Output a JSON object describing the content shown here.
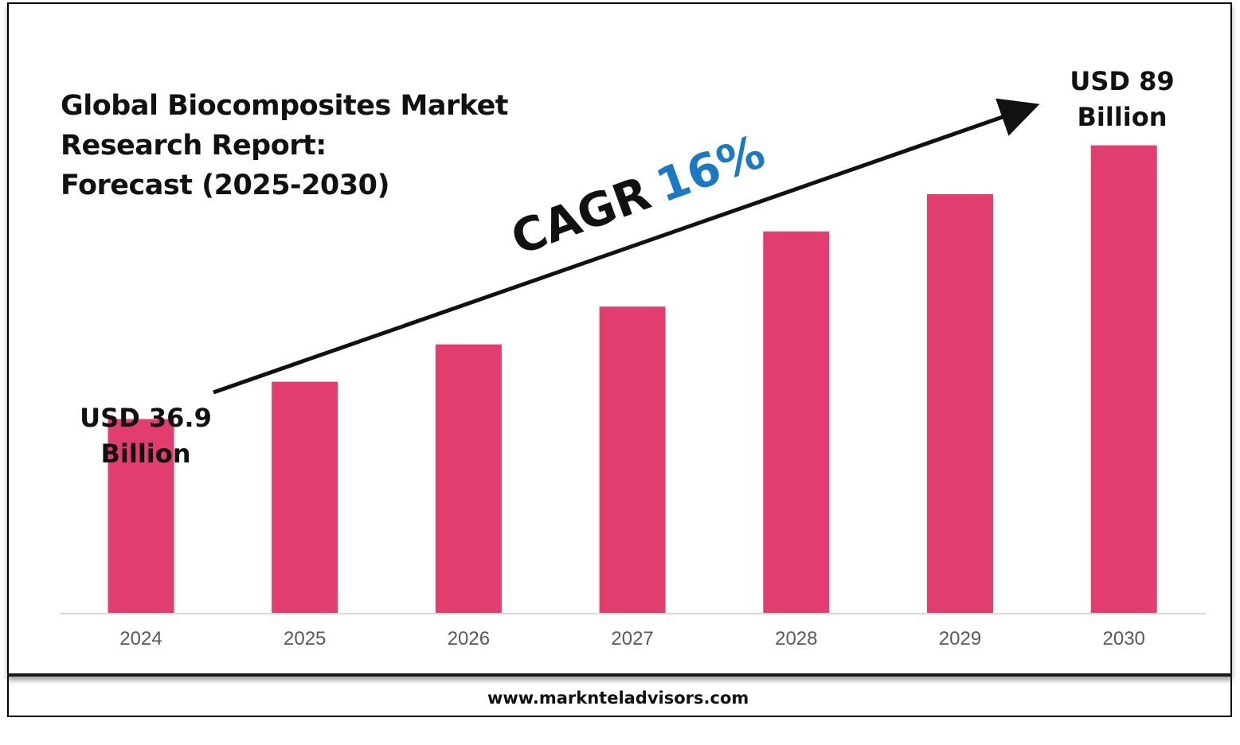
{
  "title_lines": [
    "Global Biocomposites Market",
    "Research Report:",
    "Forecast (2025-2030)"
  ],
  "start_label": {
    "line1": "USD 36.9",
    "line2": "Billion"
  },
  "end_label": {
    "line1": "USD 89",
    "line2": "Billion"
  },
  "cagr": {
    "word": "CAGR",
    "value": "16%"
  },
  "footer_url": "www.marknteladvisors.com",
  "colors": {
    "bar": "#e13e6f",
    "cagr_value": "#1b79c4",
    "text": "#111111",
    "tick_label": "#595959",
    "baseline": "#d9d9d9"
  },
  "chart_data": {
    "type": "bar",
    "title": "Global Biocomposites Market Research Report: Forecast (2025-2030)",
    "categories": [
      "2024",
      "2025",
      "2026",
      "2027",
      "2028",
      "2029",
      "2030"
    ],
    "series": [
      {
        "values": [
          36.9,
          44.0,
          51.1,
          58.3,
          72.6,
          79.7,
          89.0
        ]
      }
    ],
    "ylim": [
      0,
      100
    ],
    "data_labels": {
      "2024": "USD 36.9 Billion",
      "2030": "USD 89 Billion"
    },
    "annotation": "CAGR 16%",
    "grid": false,
    "legend": "none"
  }
}
